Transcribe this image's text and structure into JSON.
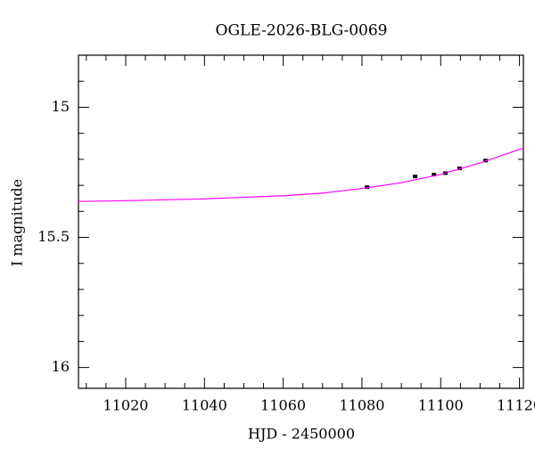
{
  "chart_data": {
    "type": "scatter",
    "title": "OGLE-2026-BLG-0069",
    "xlabel": "HJD - 2450000",
    "ylabel": "I magnitude",
    "xlim": [
      11008,
      11121
    ],
    "ylim": [
      16.08,
      14.8
    ],
    "y_inverted": true,
    "xticks": [
      11020,
      11040,
      11060,
      11080,
      11100,
      11120
    ],
    "xminorticks": [
      11010,
      11015,
      11025,
      11030,
      11035,
      11045,
      11050,
      11055,
      11065,
      11070,
      11075,
      11085,
      11090,
      11095,
      11105,
      11110,
      11115
    ],
    "yticks": [
      15,
      15.5,
      16
    ],
    "yminorticks": [
      14.9,
      15.1,
      15.2,
      15.3,
      15.4,
      15.6,
      15.7,
      15.8,
      15.9
    ],
    "series": [
      {
        "type": "scatter",
        "color": "#000000",
        "x": [
          11081.3,
          11093.5,
          11098.3,
          11101.2,
          11104.8,
          11111.4
        ],
        "values": [
          15.307,
          15.266,
          15.259,
          15.253,
          15.235,
          15.205
        ],
        "errors": [
          0.006,
          0.006,
          0.006,
          0.006,
          0.006,
          0.006
        ]
      },
      {
        "type": "line",
        "color": "#ff00ff",
        "x": [
          11008,
          11020,
          11040,
          11060,
          11070,
          11080,
          11090,
          11100,
          11110,
          11121
        ],
        "values": [
          15.362,
          15.359,
          15.352,
          15.34,
          15.33,
          15.312,
          15.29,
          15.258,
          15.214,
          15.157
        ]
      }
    ]
  }
}
